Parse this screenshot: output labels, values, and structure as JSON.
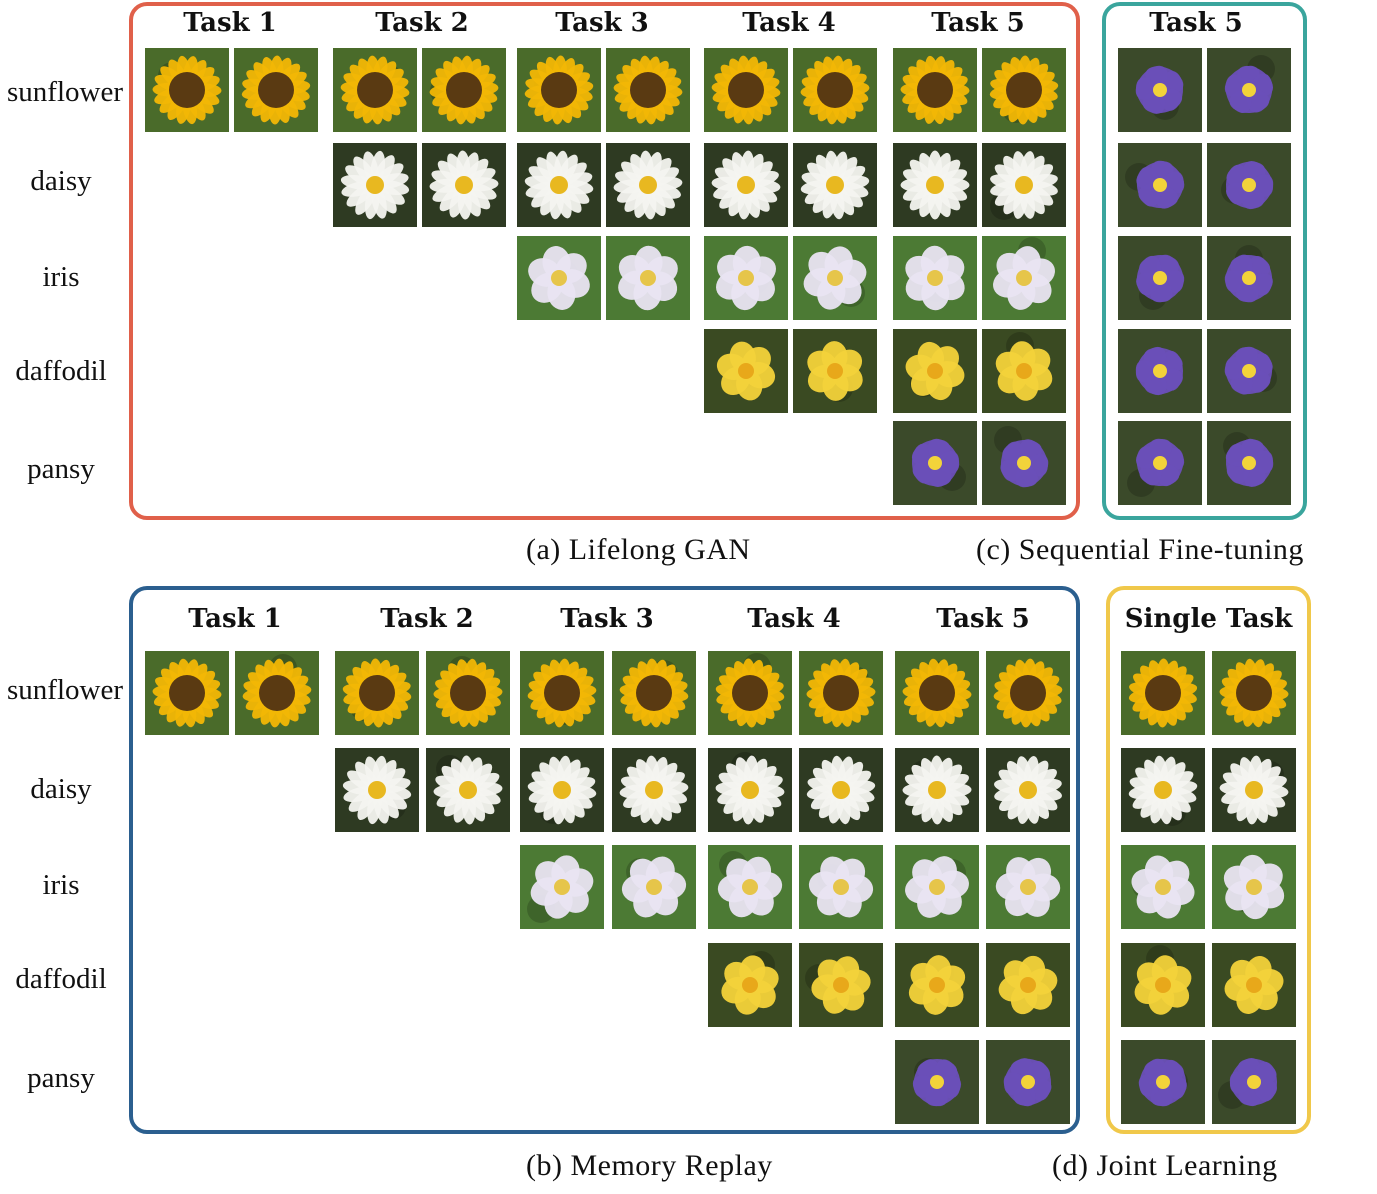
{
  "row_labels": [
    "sunflower",
    "daisy",
    "iris",
    "daffodil",
    "pansy"
  ],
  "panels": {
    "lifelong_gan": {
      "caption": "(a) Lifelong GAN",
      "border_color": "#e0604a",
      "tasks": [
        "Task 1",
        "Task 2",
        "Task 3",
        "Task 4",
        "Task 5"
      ]
    },
    "memory_replay": {
      "caption": "(b) Memory Replay",
      "border_color": "#2b5f8f",
      "tasks": [
        "Task 1",
        "Task 2",
        "Task 3",
        "Task 4",
        "Task 5"
      ]
    },
    "sequential_finetuning": {
      "caption": "(c) Sequential Fine-tuning",
      "border_color": "#3aa59d",
      "tasks": [
        "Task 5"
      ]
    },
    "joint_learning": {
      "caption": "(d) Joint Learning",
      "border_color": "#f0c84a",
      "tasks": [
        "Single Task"
      ]
    }
  },
  "flower_styles": {
    "sunflower": {
      "petal": "#f2b705",
      "center": "#5a3a12",
      "bg": "#4a6b2a"
    },
    "daisy": {
      "petal": "#f4f4f0",
      "center": "#e8b820",
      "bg": "#2e3a22"
    },
    "iris": {
      "petal": "#e9e4f2",
      "center": "#e6c54a",
      "bg": "#4c7a34"
    },
    "daffodil": {
      "petal": "#f3d23a",
      "center": "#e8a81a",
      "bg": "#3a4a22"
    },
    "pansy": {
      "petal": "#6a4fb8",
      "center": "#f2d33a",
      "bg": "#3b4a2a"
    }
  }
}
